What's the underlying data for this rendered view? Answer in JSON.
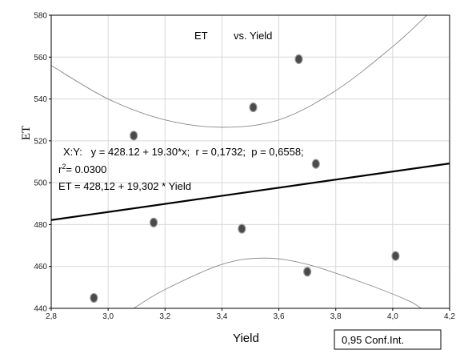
{
  "chart_data": {
    "type": "scatter",
    "title_left": "ET",
    "title_right": "vs. Yield",
    "xlabel": "Yield",
    "ylabel": "ET",
    "xlim": [
      2.8,
      4.2
    ],
    "ylim": [
      440,
      580
    ],
    "xticks": [
      2.8,
      3.0,
      3.2,
      3.4,
      3.6,
      3.8,
      4.0,
      4.2
    ],
    "xtick_labels": [
      "2,8",
      "3,0",
      "3,2",
      "3,4",
      "3,6",
      "3,8",
      "4,0",
      "4,2"
    ],
    "yticks": [
      440,
      460,
      480,
      500,
      520,
      540,
      560,
      580
    ],
    "ytick_labels": [
      "440",
      "460",
      "480",
      "500",
      "520",
      "540",
      "560",
      "580"
    ],
    "grid": true,
    "points": [
      {
        "x": 2.95,
        "y": 445
      },
      {
        "x": 3.09,
        "y": 522.5
      },
      {
        "x": 3.16,
        "y": 481
      },
      {
        "x": 3.47,
        "y": 478
      },
      {
        "x": 3.51,
        "y": 536
      },
      {
        "x": 3.67,
        "y": 559
      },
      {
        "x": 3.7,
        "y": 457.5
      },
      {
        "x": 3.73,
        "y": 509
      },
      {
        "x": 4.01,
        "y": 465
      }
    ],
    "regression": {
      "intercept": 428.12,
      "slope": 19.302
    },
    "confidence_upper": [
      [
        2.8,
        556
      ],
      [
        3.0,
        540
      ],
      [
        3.2,
        530
      ],
      [
        3.4,
        526.5
      ],
      [
        3.6,
        530
      ],
      [
        3.8,
        544
      ],
      [
        4.0,
        565
      ],
      [
        4.12,
        580
      ]
    ],
    "confidence_lower": [
      [
        3.09,
        440
      ],
      [
        3.2,
        449
      ],
      [
        3.4,
        461
      ],
      [
        3.55,
        464
      ],
      [
        3.7,
        461
      ],
      [
        3.9,
        452
      ],
      [
        4.05,
        444
      ],
      [
        4.1,
        440
      ]
    ],
    "annotations": {
      "line1": "X:Y:   y = 428.12 + 19.30*x;  r = 0,1732;  p = 0,6558;",
      "line2_prefix": "r",
      "line2_sup": "2",
      "line2_suffix": "= 0.0300",
      "line3": "ET = 428,12 + 19,302 * Yield"
    },
    "legend_label": "0,95 Conf.Int.",
    "colors": {
      "point_fill": "#4a4a4a",
      "point_stroke": "#9a9a9a",
      "regression": "#000000",
      "confidence": "#8a8a8a",
      "grid": "#d8d8d8"
    }
  }
}
